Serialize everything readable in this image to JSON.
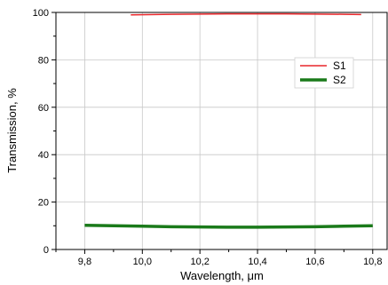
{
  "chart_data": {
    "type": "line",
    "title": "",
    "xlabel": "Wavelength, μm",
    "ylabel": "Transmission, %",
    "xlim": [
      9.7,
      10.85
    ],
    "ylim": [
      0,
      100
    ],
    "x_ticks": [
      9.8,
      10.0,
      10.2,
      10.4,
      10.6,
      10.8
    ],
    "x_tick_labels": [
      "9,8",
      "10,0",
      "10,2",
      "10,4",
      "10,6",
      "10,8"
    ],
    "y_ticks": [
      0,
      20,
      40,
      60,
      80,
      100
    ],
    "y_tick_labels": [
      "0",
      "20",
      "40",
      "60",
      "80",
      "100"
    ],
    "grid": true,
    "legend_position": "top-right",
    "series": [
      {
        "name": "S1",
        "color": "#e8262a",
        "x": [
          9.96,
          10.1,
          10.2,
          10.3,
          10.4,
          10.5,
          10.6,
          10.7,
          10.76
        ],
        "y": [
          99.0,
          99.2,
          99.3,
          99.4,
          99.4,
          99.4,
          99.3,
          99.2,
          99.1
        ]
      },
      {
        "name": "S2",
        "color": "#1a7a1a",
        "x": [
          9.8,
          9.9,
          10.0,
          10.1,
          10.2,
          10.3,
          10.4,
          10.5,
          10.6,
          10.7,
          10.8
        ],
        "y": [
          10.2,
          10.0,
          9.8,
          9.6,
          9.5,
          9.4,
          9.4,
          9.5,
          9.6,
          9.8,
          10.0
        ]
      }
    ]
  }
}
